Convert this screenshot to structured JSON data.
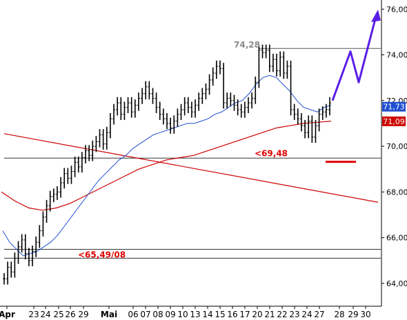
{
  "chart_data": {
    "type": "line",
    "title": "",
    "ylim": [
      63.0,
      76.4
    ],
    "y_ticks": [
      "64,00",
      "66,00",
      "68,00",
      "70,00",
      "72,00",
      "74,00",
      "76,00"
    ],
    "y_tick_values": [
      64,
      66,
      68,
      70,
      72,
      74,
      76
    ],
    "x_tick_labels": [
      "Apr",
      "23",
      "24",
      "25",
      "26",
      "29",
      "Mai",
      "06",
      "07",
      "08",
      "09",
      "10",
      "13",
      "14",
      "15",
      "16",
      "17",
      "20",
      "21",
      "22",
      "23",
      "24",
      "27",
      "28",
      "29",
      "30"
    ],
    "grid": false,
    "series": [
      {
        "role": "price",
        "color": "#000000",
        "y": [
          64.2,
          64.7,
          64.5,
          65.1,
          65.6,
          65.9,
          65.3,
          65.0,
          65.4,
          65.8,
          66.3,
          66.9,
          67.4,
          67.8,
          67.9,
          68.0,
          68.4,
          68.8,
          68.6,
          68.9,
          69.3,
          69.1,
          69.5,
          69.8,
          69.6,
          70.0,
          70.2,
          70.5,
          70.1,
          70.6,
          71.2,
          71.6,
          71.9,
          71.4,
          71.7,
          71.9,
          71.5,
          71.8,
          72.1,
          72.3,
          72.6,
          72.3,
          72.1,
          71.7,
          71.4,
          71.2,
          71.0,
          70.8,
          71.1,
          71.4,
          71.6,
          71.9,
          71.7,
          71.5,
          71.8,
          72.1,
          72.3,
          72.5,
          72.9,
          73.2,
          73.5,
          73.4,
          71.9,
          72.1,
          72.0,
          71.8,
          71.6,
          71.5,
          71.7,
          71.9,
          72.1,
          72.8,
          74.2,
          74.1,
          74.2,
          73.5,
          73.8,
          73.3,
          73.9,
          73.2,
          73.5,
          71.6,
          71.4,
          71.2,
          70.9,
          70.6,
          71.1,
          70.4,
          70.9,
          71.4,
          71.5,
          71.6,
          71.9
        ]
      },
      {
        "role": "moving-average-short",
        "color": "#1f4fd0",
        "y": [
          66.3,
          65.8,
          65.5,
          65.2,
          65.3,
          65.4,
          65.6,
          65.8,
          66.1,
          66.5,
          66.9,
          67.3,
          67.7,
          68.1,
          68.5,
          68.8,
          69.1,
          69.4,
          69.6,
          69.9,
          70.1,
          70.3,
          70.5,
          70.6,
          70.7,
          70.8,
          70.9,
          71.0,
          71.0,
          71.1,
          71.2,
          71.4,
          71.5,
          71.7,
          71.9,
          72.0,
          72.3,
          72.7,
          73.0,
          73.1,
          73.0,
          72.7,
          72.4,
          72.0,
          71.7,
          71.6,
          71.5,
          71.7,
          71.8
        ]
      },
      {
        "role": "moving-average-long",
        "color": "#cc0000",
        "y": [
          68.0,
          67.6,
          67.3,
          67.2,
          67.3,
          67.5,
          67.8,
          68.1,
          68.4,
          68.7,
          69.0,
          69.2,
          69.4,
          69.5,
          69.6,
          69.8,
          70.0,
          70.2,
          70.4,
          70.6,
          70.8,
          70.9,
          71.0,
          71.05,
          71.1
        ]
      },
      {
        "role": "trendline",
        "color": "#cc0000",
        "y_start": 70.55,
        "y_end": 67.55
      },
      {
        "role": "forecast",
        "color": "#5a1ee6",
        "y": [
          72.0,
          74.15,
          72.8,
          75.8
        ]
      }
    ],
    "levels": [
      {
        "label": "<69,48",
        "value": 69.48,
        "color": "#e00000"
      },
      {
        "label": "<65,49/08",
        "value": 65.49,
        "color": "#e00000"
      },
      {
        "label": "74,28",
        "value": 74.28,
        "color": "#8a8a8a"
      },
      {
        "label": "",
        "value": 65.1,
        "color": "#000000"
      }
    ],
    "value_tags": [
      {
        "label": "71,73",
        "value": 71.73,
        "color": "#1f4fd0"
      },
      {
        "label": "71,09",
        "value": 71.09,
        "color": "#cc0000"
      }
    ],
    "target_marker": {
      "value": 69.32,
      "color": "#e00000"
    }
  }
}
